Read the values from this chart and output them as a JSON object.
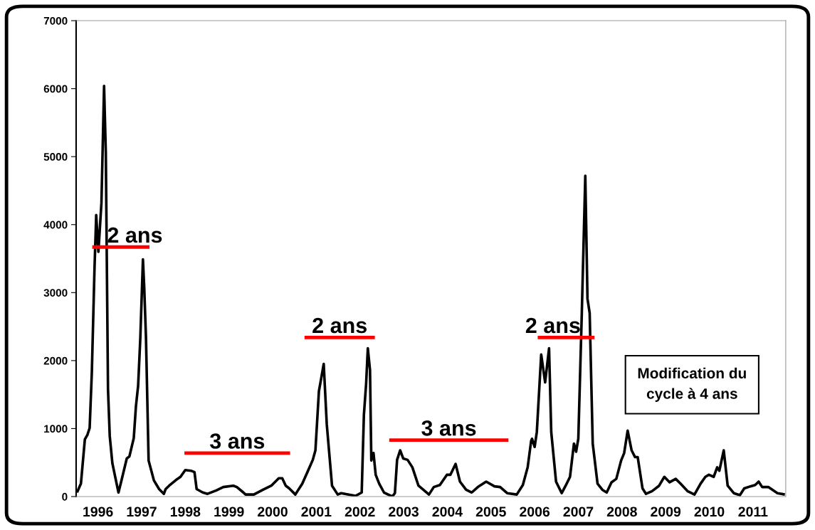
{
  "chart_data": {
    "type": "line",
    "x": [
      1995.52,
      1995.61,
      1995.7,
      1995.76,
      1995.81,
      1995.86,
      1995.92,
      1995.96,
      1996.01,
      1996.08,
      1996.14,
      1996.18,
      1996.23,
      1996.27,
      1996.33,
      1996.47,
      1996.54,
      1996.66,
      1996.72,
      1996.82,
      1996.87,
      1996.92,
      1996.97,
      1997.03,
      1997.06,
      1997.1,
      1997.16,
      1997.28,
      1997.4,
      1997.51,
      1997.55,
      1997.63,
      1997.78,
      1997.89,
      1998.0,
      1998.13,
      1998.21,
      1998.26,
      1998.4,
      1998.51,
      1998.71,
      1998.87,
      1999.1,
      1999.18,
      1999.33,
      1999.38,
      1999.57,
      1999.78,
      1999.97,
      2000.14,
      2000.22,
      2000.3,
      2000.38,
      2000.52,
      2000.68,
      2000.81,
      2000.92,
      2000.98,
      2001.06,
      2001.11,
      2001.17,
      2001.24,
      2001.36,
      2001.49,
      2001.57,
      2001.9,
      2002.04,
      2002.09,
      2002.14,
      2002.18,
      2002.23,
      2002.26,
      2002.31,
      2002.36,
      2002.44,
      2002.55,
      2002.74,
      2002.8,
      2002.85,
      2002.92,
      2002.99,
      2003.09,
      2003.2,
      2003.34,
      2003.58,
      2003.69,
      2003.83,
      2003.99,
      2004.07,
      2004.19,
      2004.29,
      2004.43,
      2004.56,
      2004.7,
      2004.89,
      2005.08,
      2005.21,
      2005.37,
      2005.59,
      2005.73,
      2005.84,
      2005.92,
      2005.94,
      2006.0,
      2006.05,
      2006.15,
      2006.24,
      2006.33,
      2006.38,
      2006.49,
      2006.62,
      2006.71,
      2006.81,
      2006.9,
      2006.95,
      2007.0,
      2007.08,
      2007.16,
      2007.21,
      2007.26,
      2007.33,
      2007.44,
      2007.55,
      2007.65,
      2007.76,
      2007.87,
      2007.98,
      2008.05,
      2008.13,
      2008.22,
      2008.3,
      2008.36,
      2008.47,
      2008.55,
      2008.69,
      2008.85,
      2008.97,
      2009.09,
      2009.23,
      2009.34,
      2009.5,
      2009.66,
      2009.8,
      2009.91,
      2009.99,
      2010.1,
      2010.18,
      2010.23,
      2010.33,
      2010.42,
      2010.56,
      2010.7,
      2010.8,
      2010.94,
      2011.05,
      2011.13,
      2011.21,
      2011.35,
      2011.56,
      2011.73
    ],
    "series": [
      {
        "color": "#000000",
        "values": [
          60,
          190,
          840,
          910,
          1010,
          1830,
          3330,
          4140,
          3600,
          4320,
          6040,
          5060,
          1580,
          890,
          490,
          60,
          240,
          560,
          590,
          860,
          1330,
          1630,
          2330,
          3490,
          3070,
          2330,
          530,
          240,
          110,
          40,
          110,
          160,
          240,
          290,
          390,
          380,
          360,
          110,
          60,
          40,
          90,
          140,
          160,
          140,
          60,
          30,
          30,
          100,
          160,
          270,
          270,
          160,
          120,
          30,
          190,
          380,
          540,
          680,
          1550,
          1730,
          1950,
          1060,
          160,
          30,
          50,
          10,
          60,
          1200,
          1650,
          2180,
          1860,
          530,
          640,
          320,
          190,
          60,
          0,
          50,
          540,
          680,
          560,
          540,
          430,
          160,
          30,
          140,
          170,
          320,
          320,
          480,
          220,
          100,
          60,
          140,
          220,
          150,
          140,
          50,
          30,
          170,
          430,
          820,
          850,
          730,
          950,
          2090,
          1680,
          2180,
          950,
          220,
          50,
          160,
          290,
          780,
          660,
          850,
          2700,
          4720,
          2910,
          2700,
          780,
          190,
          100,
          60,
          210,
          260,
          530,
          640,
          970,
          680,
          580,
          580,
          120,
          40,
          80,
          160,
          290,
          210,
          260,
          190,
          80,
          30,
          190,
          290,
          320,
          290,
          430,
          380,
          680,
          160,
          50,
          20,
          120,
          150,
          170,
          220,
          140,
          140,
          50,
          30
        ]
      },
      {
        "type": "line",
        "name": "2 ans",
        "color": "#ff0000",
        "x": [
          1995.87,
          1997.18
        ],
        "values": [
          3670,
          3670
        ]
      },
      {
        "type": "line",
        "name": "3 ans",
        "color": "#ff0000",
        "x": [
          1997.98,
          2000.4
        ],
        "values": [
          640,
          640
        ]
      },
      {
        "type": "line",
        "name": "2 ans",
        "color": "#ff0000",
        "x": [
          2000.73,
          2002.34
        ],
        "values": [
          2340,
          2340
        ]
      },
      {
        "type": "line",
        "name": "3 ans",
        "color": "#ff0000",
        "x": [
          2002.67,
          2005.4
        ],
        "values": [
          830,
          830
        ]
      },
      {
        "type": "line",
        "name": "2 ans",
        "color": "#ff0000",
        "x": [
          2006.07,
          2007.37
        ],
        "values": [
          2340,
          2340
        ]
      }
    ],
    "annotations": [
      "Modification du\ncycle à 4 ans"
    ],
    "xlim": [
      1995.5,
      2011.75
    ],
    "xticks": [
      1996,
      1997,
      1998,
      1999,
      2000,
      2001,
      2002,
      2003,
      2004,
      2005,
      2006,
      2007,
      2008,
      2009,
      2010,
      2011
    ],
    "ylim": [
      0,
      7000
    ],
    "yticks": [
      0,
      1000,
      2000,
      3000,
      4000,
      5000,
      6000,
      7000
    ],
    "marker": "none",
    "line_style": "solid"
  }
}
